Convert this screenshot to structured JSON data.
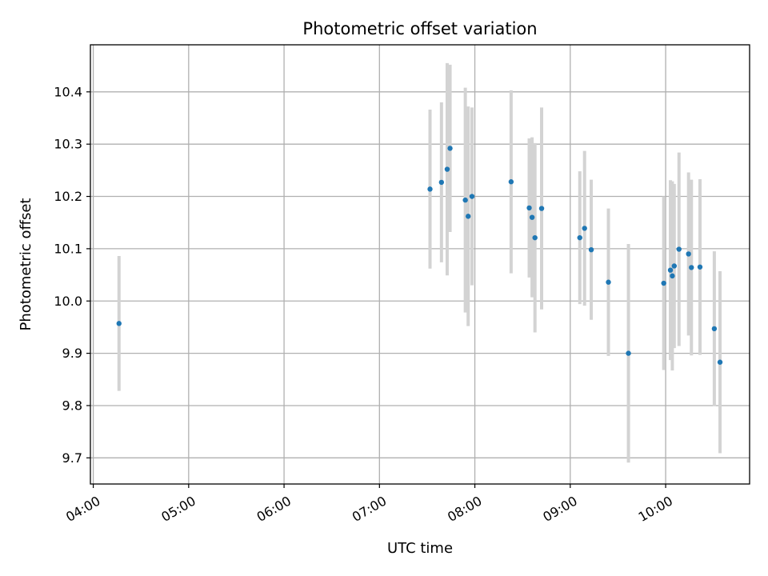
{
  "chart_data": {
    "type": "scatter",
    "title": "Photometric offset variation",
    "xlabel": "UTC time",
    "ylabel": "Photometric offset",
    "x_unit": "hours UTC (decimal)",
    "xlim": [
      3.97,
      10.88
    ],
    "ylim": [
      9.65,
      10.49
    ],
    "grid": true,
    "x_ticks": [
      {
        "value": 4,
        "label": "04:00"
      },
      {
        "value": 5,
        "label": "05:00"
      },
      {
        "value": 6,
        "label": "06:00"
      },
      {
        "value": 7,
        "label": "07:00"
      },
      {
        "value": 8,
        "label": "08:00"
      },
      {
        "value": 9,
        "label": "09:00"
      },
      {
        "value": 10,
        "label": "10:00"
      }
    ],
    "y_ticks": [
      {
        "value": 9.7,
        "label": "9.7"
      },
      {
        "value": 9.8,
        "label": "9.8"
      },
      {
        "value": 9.9,
        "label": "9.9"
      },
      {
        "value": 10.0,
        "label": "10.0"
      },
      {
        "value": 10.1,
        "label": "10.1"
      },
      {
        "value": 10.2,
        "label": "10.2"
      },
      {
        "value": 10.3,
        "label": "10.3"
      },
      {
        "value": 10.4,
        "label": "10.4"
      }
    ],
    "colors": {
      "marker": "#1f77b4",
      "errorbar": "#d3d3d3",
      "grid": "#b0b0b0",
      "axes": "#000000"
    },
    "series": [
      {
        "name": "offset",
        "points": [
          {
            "x": 4.27,
            "y": 9.957,
            "yerr": 0.129
          },
          {
            "x": 7.53,
            "y": 10.214,
            "yerr": 0.152
          },
          {
            "x": 7.65,
            "y": 10.227,
            "yerr": 0.153
          },
          {
            "x": 7.71,
            "y": 10.252,
            "yerr": 0.203
          },
          {
            "x": 7.74,
            "y": 10.292,
            "yerr": 0.16
          },
          {
            "x": 7.9,
            "y": 10.193,
            "yerr": 0.215
          },
          {
            "x": 7.93,
            "y": 10.162,
            "yerr": 0.21
          },
          {
            "x": 7.97,
            "y": 10.2,
            "yerr": 0.17
          },
          {
            "x": 8.38,
            "y": 10.228,
            "yerr": 0.175
          },
          {
            "x": 8.57,
            "y": 10.178,
            "yerr": 0.133
          },
          {
            "x": 8.6,
            "y": 10.16,
            "yerr": 0.153
          },
          {
            "x": 8.63,
            "y": 10.121,
            "yerr": 0.181
          },
          {
            "x": 8.7,
            "y": 10.177,
            "yerr": 0.193
          },
          {
            "x": 9.1,
            "y": 10.121,
            "yerr": 0.127
          },
          {
            "x": 9.15,
            "y": 10.139,
            "yerr": 0.148
          },
          {
            "x": 9.22,
            "y": 10.098,
            "yerr": 0.134
          },
          {
            "x": 9.4,
            "y": 10.036,
            "yerr": 0.141
          },
          {
            "x": 9.61,
            "y": 9.9,
            "yerr": 0.209
          },
          {
            "x": 9.98,
            "y": 10.034,
            "yerr": 0.166
          },
          {
            "x": 10.05,
            "y": 10.059,
            "yerr": 0.172
          },
          {
            "x": 10.07,
            "y": 10.048,
            "yerr": 0.181
          },
          {
            "x": 10.09,
            "y": 10.067,
            "yerr": 0.157
          },
          {
            "x": 10.14,
            "y": 10.099,
            "yerr": 0.185
          },
          {
            "x": 10.24,
            "y": 10.09,
            "yerr": 0.156
          },
          {
            "x": 10.27,
            "y": 10.064,
            "yerr": 0.168
          },
          {
            "x": 10.36,
            "y": 10.065,
            "yerr": 0.168
          },
          {
            "x": 10.51,
            "y": 9.947,
            "yerr": 0.148
          },
          {
            "x": 10.57,
            "y": 9.883,
            "yerr": 0.174
          }
        ]
      }
    ]
  }
}
